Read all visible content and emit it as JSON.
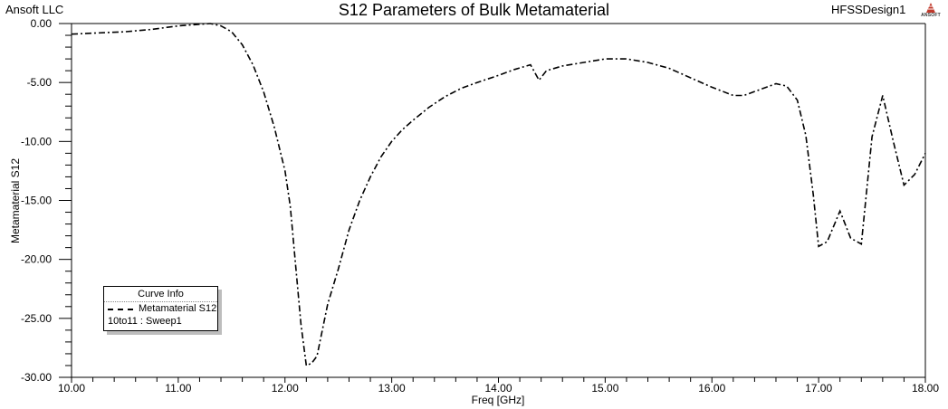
{
  "header": {
    "company": "Ansoft LLC",
    "title": "S12 Parameters of Bulk Metamaterial",
    "design": "HFSSDesign1",
    "logo_text": "ANSOFT",
    "logo_color": "#c0392b"
  },
  "legend": {
    "title": "Curve Info",
    "entries": [
      {
        "label": "Metamaterial S12",
        "sublabel": "10to11 : Sweep1",
        "style": "dash-dot",
        "color": "#000000"
      }
    ]
  },
  "axes": {
    "xlabel": "Freq [GHz]",
    "ylabel": "Metamaterial S12",
    "xticks": [
      "10.00",
      "11.00",
      "12.00",
      "13.00",
      "14.00",
      "15.00",
      "16.00",
      "17.00",
      "18.00"
    ],
    "yticks": [
      "0.00",
      "-5.00",
      "-10.00",
      "-15.00",
      "-20.00",
      "-25.00",
      "-30.00"
    ]
  },
  "chart_data": {
    "type": "line",
    "title": "S12 Parameters of Bulk Metamaterial",
    "xlabel": "Freq [GHz]",
    "ylabel": "Metamaterial S12",
    "xlim": [
      10,
      18
    ],
    "ylim": [
      -30,
      0
    ],
    "grid": false,
    "legend_position": "lower-left",
    "series": [
      {
        "name": "Metamaterial S12 (10to11 : Sweep1)",
        "line_style": "dash-dot",
        "x": [
          10.0,
          10.25,
          10.5,
          10.75,
          11.0,
          11.15,
          11.3,
          11.4,
          11.5,
          11.6,
          11.7,
          11.8,
          11.9,
          12.0,
          12.05,
          12.1,
          12.15,
          12.2,
          12.25,
          12.3,
          12.4,
          12.5,
          12.6,
          12.7,
          12.8,
          12.9,
          13.0,
          13.1,
          13.2,
          13.35,
          13.5,
          13.65,
          13.8,
          14.0,
          14.15,
          14.3,
          14.38,
          14.45,
          14.6,
          14.8,
          15.0,
          15.2,
          15.4,
          15.6,
          15.8,
          16.0,
          16.2,
          16.3,
          16.45,
          16.6,
          16.7,
          16.8,
          16.88,
          16.95,
          17.0,
          17.08,
          17.2,
          17.3,
          17.4,
          17.5,
          17.6,
          17.7,
          17.8,
          17.9,
          18.0
        ],
        "values": [
          -0.9,
          -0.8,
          -0.7,
          -0.5,
          -0.2,
          -0.1,
          0.0,
          -0.2,
          -0.7,
          -1.8,
          -3.5,
          -5.8,
          -8.8,
          -12.5,
          -15.5,
          -20.5,
          -25.5,
          -29.0,
          -28.8,
          -28.2,
          -23.8,
          -20.8,
          -17.5,
          -15.0,
          -13.0,
          -11.3,
          -10.0,
          -9.0,
          -8.2,
          -7.1,
          -6.2,
          -5.5,
          -5.0,
          -4.4,
          -3.9,
          -3.5,
          -4.8,
          -4.0,
          -3.6,
          -3.3,
          -3.0,
          -3.0,
          -3.3,
          -3.8,
          -4.6,
          -5.4,
          -6.1,
          -6.1,
          -5.6,
          -5.1,
          -5.3,
          -6.5,
          -9.5,
          -14.5,
          -18.9,
          -18.5,
          -15.9,
          -18.2,
          -18.7,
          -9.6,
          -6.1,
          -10.0,
          -13.7,
          -12.8,
          -11.0
        ]
      }
    ]
  }
}
